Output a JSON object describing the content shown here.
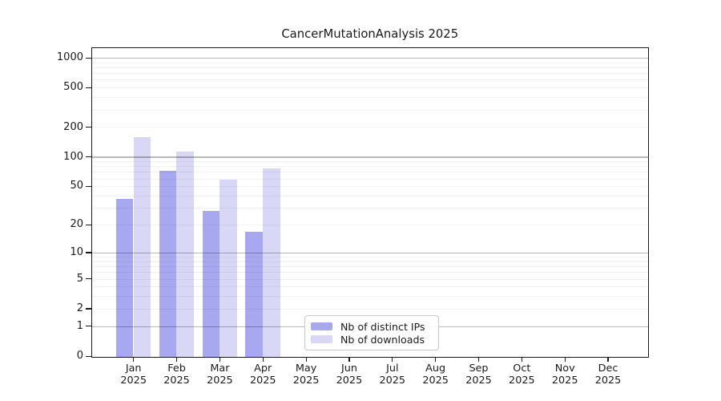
{
  "chart_data": {
    "type": "bar",
    "title": "CancerMutationAnalysis 2025",
    "year": "2025",
    "categories": [
      "Jan",
      "Feb",
      "Mar",
      "Apr",
      "May",
      "Jun",
      "Jul",
      "Aug",
      "Sep",
      "Oct",
      "Nov",
      "Dec"
    ],
    "series": [
      {
        "name": "Nb of distinct IPs",
        "color": "#a8a8f0",
        "values": [
          38,
          73,
          28,
          17,
          null,
          null,
          null,
          null,
          null,
          null,
          null,
          null
        ]
      },
      {
        "name": "Nb of downloads",
        "color": "#d8d8f6",
        "values": [
          160,
          115,
          59,
          78,
          null,
          null,
          null,
          null,
          null,
          null,
          null,
          null
        ]
      }
    ],
    "y_ticks": [
      0,
      1,
      2,
      5,
      10,
      20,
      50,
      100,
      200,
      500,
      1000
    ],
    "ylim": [
      0,
      1000
    ],
    "y_scale": "log1p",
    "grid": {
      "major": [
        1,
        10,
        100,
        1000
      ],
      "minor": [
        2,
        3,
        4,
        5,
        6,
        7,
        8,
        9,
        20,
        30,
        40,
        50,
        60,
        70,
        80,
        90,
        200,
        300,
        400,
        500,
        600,
        700,
        800,
        900
      ]
    },
    "legend_position": "inside-bottom-center",
    "xlabel": "",
    "ylabel": ""
  }
}
